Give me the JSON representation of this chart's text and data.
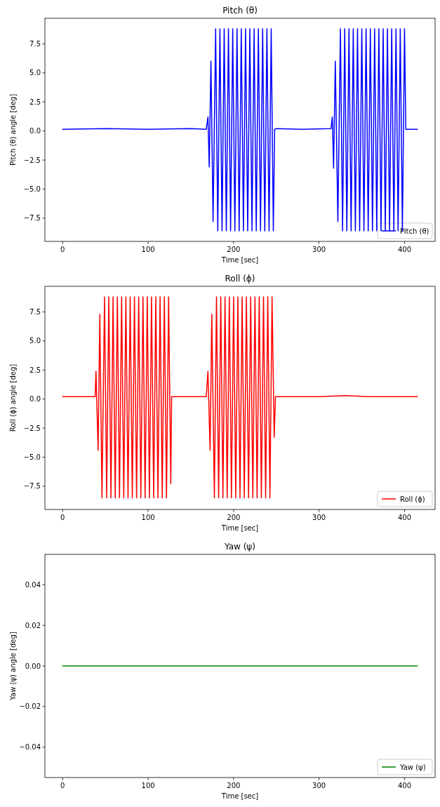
{
  "chart_data": [
    {
      "type": "line",
      "title": "Pitch (θ)",
      "xlabel": "Time [sec]",
      "ylabel": "Pitch (θ) angle [deg]",
      "legend": "bottom right",
      "xlim": [
        -20.75,
        435.75
      ],
      "ylim": [
        -9.5,
        9.7
      ],
      "xticks": [
        {
          "value": 0,
          "label": "0"
        },
        {
          "value": 100,
          "label": "100"
        },
        {
          "value": 200,
          "label": "200"
        },
        {
          "value": 300,
          "label": "300"
        },
        {
          "value": 400,
          "label": "400"
        }
      ],
      "yticks": [
        {
          "value": -7.5,
          "label": "−7.5"
        },
        {
          "value": -5,
          "label": "−5.0"
        },
        {
          "value": -2.5,
          "label": "−2.5"
        },
        {
          "value": 0,
          "label": "0.0"
        },
        {
          "value": 2.5,
          "label": "2.5"
        },
        {
          "value": 5,
          "label": "5.0"
        },
        {
          "value": 7.5,
          "label": "7.5"
        }
      ],
      "series": [
        {
          "name": "Pitch (θ)",
          "color": "#0000ff",
          "x": [
            0,
            50,
            100,
            150,
            168,
            170,
            171.5,
            173.5,
            176,
            179,
            181.5,
            184,
            186.5,
            189,
            191.5,
            194,
            196.5,
            199,
            201.5,
            204,
            206.5,
            209,
            211.5,
            214,
            216.5,
            219,
            221.5,
            224,
            226.5,
            229,
            231.5,
            234,
            236.5,
            239,
            241.5,
            244,
            246.5,
            248,
            250,
            280,
            314,
            315.5,
            317,
            319,
            322,
            325,
            327.5,
            330,
            332.5,
            335,
            337.5,
            340,
            342.5,
            345,
            347.5,
            350,
            352.5,
            355,
            357.5,
            360,
            362.5,
            365,
            367.5,
            370,
            372.5,
            375,
            377.5,
            380,
            382.5,
            385,
            387.5,
            390,
            392.5,
            395,
            397.5,
            400,
            401.5,
            415
          ],
          "values": [
            0.15,
            0.2,
            0.15,
            0.2,
            0.15,
            1.2,
            -3.1,
            6.0,
            -7.8,
            8.8,
            -8.6,
            8.8,
            -8.6,
            8.8,
            -8.6,
            8.8,
            -8.6,
            8.8,
            -8.6,
            8.8,
            -8.6,
            8.8,
            -8.6,
            8.8,
            -8.6,
            8.8,
            -8.6,
            8.8,
            -8.6,
            8.8,
            -8.6,
            8.8,
            -8.6,
            8.8,
            -8.6,
            8.8,
            -8.6,
            0.15,
            0.2,
            0.15,
            0.2,
            1.2,
            -3.2,
            6.0,
            -7.8,
            8.8,
            -8.6,
            8.8,
            -8.6,
            8.8,
            -8.6,
            8.8,
            -8.6,
            8.8,
            -8.6,
            8.8,
            -8.6,
            8.8,
            -8.6,
            8.8,
            -8.6,
            8.8,
            -8.6,
            8.8,
            -8.6,
            8.8,
            -8.6,
            8.8,
            -8.6,
            8.8,
            -8.6,
            8.8,
            -8.6,
            8.8,
            -8.6,
            8.8,
            0.15,
            0.15
          ]
        }
      ]
    },
    {
      "type": "line",
      "title": "Roll (ϕ)",
      "xlabel": "Time [sec]",
      "ylabel": "Roll (ϕ) angle [deg]",
      "legend": "bottom right",
      "xlim": [
        -20.75,
        435.75
      ],
      "ylim": [
        -9.5,
        9.7
      ],
      "xticks": [
        {
          "value": 0,
          "label": "0"
        },
        {
          "value": 100,
          "label": "100"
        },
        {
          "value": 200,
          "label": "200"
        },
        {
          "value": 300,
          "label": "300"
        },
        {
          "value": 400,
          "label": "400"
        }
      ],
      "yticks": [
        {
          "value": -7.5,
          "label": "−7.5"
        },
        {
          "value": -5,
          "label": "−5.0"
        },
        {
          "value": -2.5,
          "label": "−2.5"
        },
        {
          "value": 0,
          "label": "0.0"
        },
        {
          "value": 2.5,
          "label": "2.5"
        },
        {
          "value": 5,
          "label": "5.0"
        },
        {
          "value": 7.5,
          "label": "7.5"
        }
      ],
      "series": [
        {
          "name": "Roll (ϕ)",
          "color": "#ff0000",
          "x": [
            0,
            20,
            38,
            39,
            41.5,
            43.5,
            46,
            49,
            51.5,
            54,
            56.5,
            59,
            61.5,
            64,
            66.5,
            69,
            71.5,
            74,
            76.5,
            79,
            81.5,
            84,
            86.5,
            89,
            91.5,
            94,
            96.5,
            99,
            101.5,
            104,
            106.5,
            109,
            111.5,
            114,
            116.5,
            119,
            121.5,
            124,
            126.5,
            127.5,
            150,
            168,
            170,
            172.5,
            174.5,
            177.5,
            180,
            182.5,
            185,
            187.5,
            190,
            192.5,
            195,
            197.5,
            200,
            202.5,
            205,
            207.5,
            210,
            212.5,
            215,
            217.5,
            220,
            222.5,
            225,
            227.5,
            230,
            232.5,
            235,
            237.5,
            240,
            242.5,
            245,
            247.5,
            249,
            300,
            330,
            360,
            415
          ],
          "values": [
            0.2,
            0.2,
            0.2,
            2.4,
            -4.4,
            7.3,
            -8.5,
            8.8,
            -8.5,
            8.8,
            -8.5,
            8.8,
            -8.5,
            8.8,
            -8.5,
            8.8,
            -8.5,
            8.8,
            -8.5,
            8.8,
            -8.5,
            8.8,
            -8.5,
            8.8,
            -8.5,
            8.8,
            -8.5,
            8.8,
            -8.5,
            8.8,
            -8.5,
            8.8,
            -8.5,
            8.8,
            -8.5,
            8.8,
            -8.5,
            8.8,
            -7.3,
            0.2,
            0.2,
            0.2,
            2.4,
            -4.4,
            7.3,
            -8.5,
            8.8,
            -8.5,
            8.8,
            -8.5,
            8.8,
            -8.5,
            8.8,
            -8.5,
            8.8,
            -8.5,
            8.8,
            -8.5,
            8.8,
            -8.5,
            8.8,
            -8.5,
            8.8,
            -8.5,
            8.8,
            -8.5,
            8.8,
            -8.5,
            8.8,
            -8.5,
            8.8,
            -8.5,
            8.8,
            -3.3,
            0.2,
            0.2,
            0.3,
            0.2,
            0.2
          ]
        }
      ]
    },
    {
      "type": "line",
      "title": "Yaw (ψ)",
      "xlabel": "Time [sec]",
      "ylabel": "Yaw (ψ) angle [deg]",
      "legend": "bottom right",
      "xlim": [
        -20.75,
        435.75
      ],
      "ylim": [
        -0.055,
        0.055
      ],
      "xticks": [
        {
          "value": 0,
          "label": "0"
        },
        {
          "value": 100,
          "label": "100"
        },
        {
          "value": 200,
          "label": "200"
        },
        {
          "value": 300,
          "label": "300"
        },
        {
          "value": 400,
          "label": "400"
        }
      ],
      "yticks": [
        {
          "value": -0.04,
          "label": "−0.04"
        },
        {
          "value": -0.02,
          "label": "−0.02"
        },
        {
          "value": 0,
          "label": "0.00"
        },
        {
          "value": 0.02,
          "label": "0.02"
        },
        {
          "value": 0.04,
          "label": "0.04"
        }
      ],
      "series": [
        {
          "name": "Yaw (ψ)",
          "color": "#008000",
          "x": [
            0,
            415
          ],
          "values": [
            0,
            0
          ]
        }
      ]
    }
  ]
}
